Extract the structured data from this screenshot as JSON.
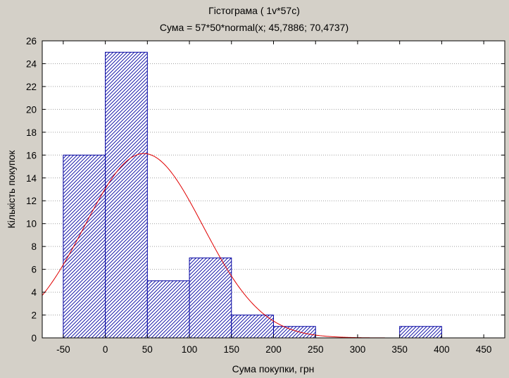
{
  "chart_data": {
    "type": "bar",
    "title": "Гістограма ( 1v*57c)",
    "subtitle": "Сума = 57*50*normal(x; 45,7886; 70,4737)",
    "xlabel": "Сума покупки, грн",
    "ylabel": "Кількість покупок",
    "xlim": [
      -75,
      475
    ],
    "ylim": [
      0,
      26
    ],
    "x_ticks": [
      -50,
      0,
      50,
      100,
      150,
      200,
      250,
      300,
      350,
      400,
      450
    ],
    "y_ticks": [
      0,
      2,
      4,
      6,
      8,
      10,
      12,
      14,
      16,
      18,
      20,
      22,
      24,
      26
    ],
    "bins": [
      {
        "from": -50,
        "to": 0,
        "value": 16
      },
      {
        "from": 0,
        "to": 50,
        "value": 25
      },
      {
        "from": 50,
        "to": 100,
        "value": 5
      },
      {
        "from": 100,
        "to": 150,
        "value": 7
      },
      {
        "from": 150,
        "to": 200,
        "value": 2
      },
      {
        "from": 200,
        "to": 250,
        "value": 1
      },
      {
        "from": 250,
        "to": 300,
        "value": 0
      },
      {
        "from": 300,
        "to": 350,
        "value": 0
      },
      {
        "from": 350,
        "to": 400,
        "value": 1
      },
      {
        "from": 400,
        "to": 450,
        "value": 0
      }
    ],
    "normal_fit": {
      "n": 57,
      "bin_width": 50,
      "mean": 45.7886,
      "sd": 70.4737
    },
    "grid": "horizontal dotted",
    "colors": {
      "bar_fill": "#ffffff",
      "bar_hatch": "#0000a0",
      "curve": "#e00000",
      "background": "#d4d0c8",
      "plot_background": "#ffffff"
    }
  }
}
